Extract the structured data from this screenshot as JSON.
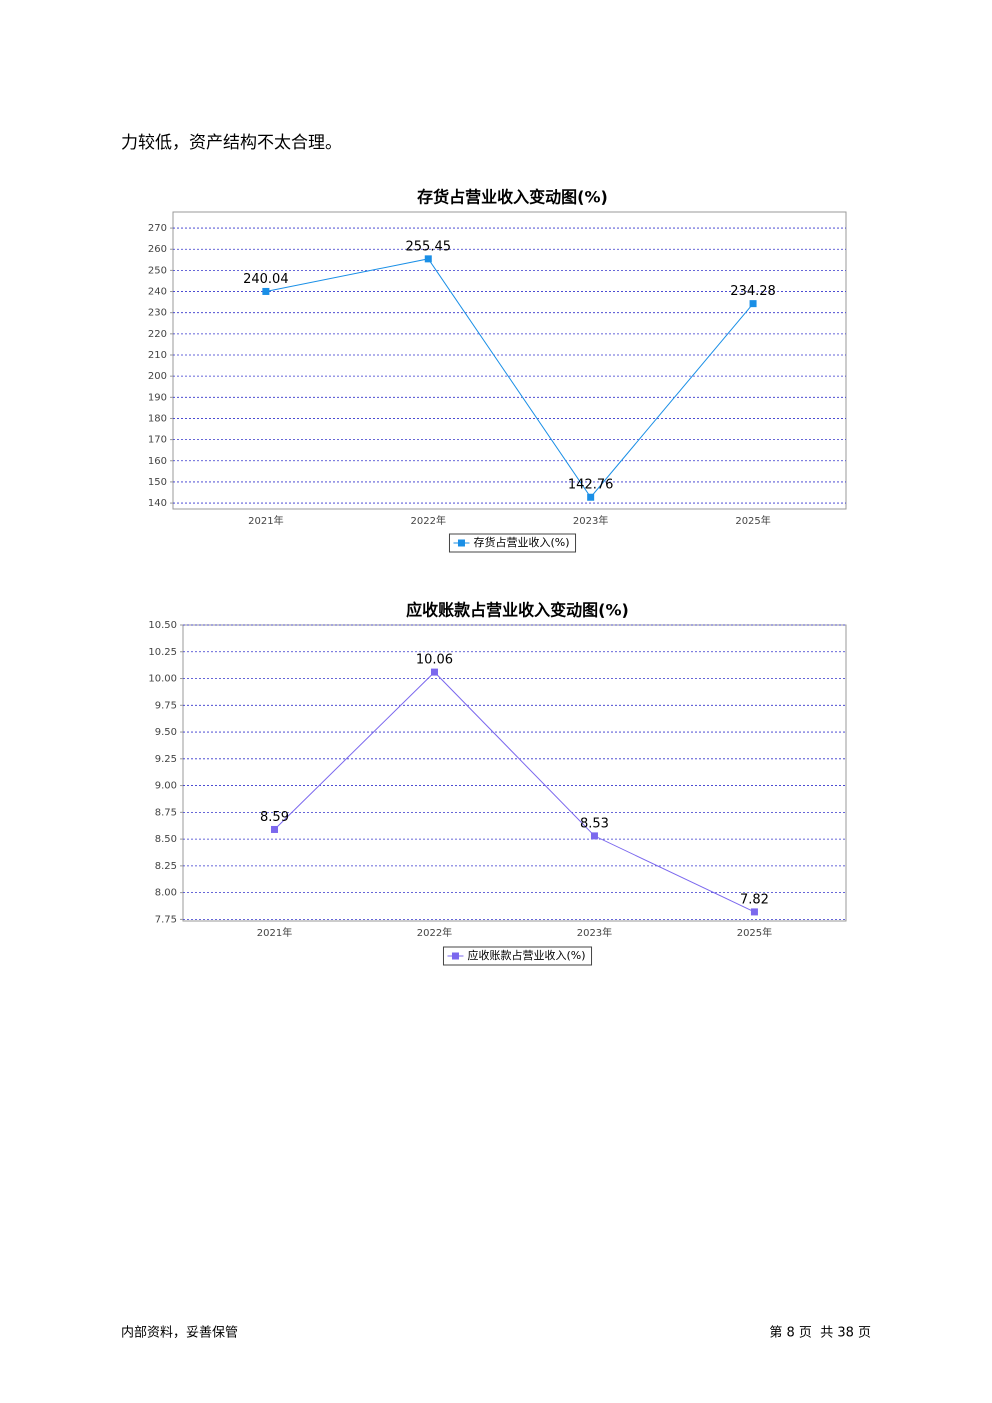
{
  "body_text": "力较低，资产结构不太合理。",
  "chart_data": [
    {
      "type": "line",
      "title": "存货占营业收入变动图(%)",
      "categories": [
        "2021年",
        "2022年",
        "2023年",
        "2025年"
      ],
      "series": [
        {
          "name": "存货占营业收入(%)",
          "color": "#1a8fe6",
          "values": [
            240.04,
            255.45,
            142.76,
            234.28
          ]
        }
      ],
      "ylim": [
        137.2,
        277.6
      ],
      "yticks": [
        140,
        150,
        160,
        170,
        180,
        190,
        200,
        210,
        220,
        230,
        240,
        250,
        260,
        270
      ],
      "grid": true
    },
    {
      "type": "line",
      "title": "应收账款占营业收入变动图(%)",
      "categories": [
        "2021年",
        "2022年",
        "2023年",
        "2025年"
      ],
      "series": [
        {
          "name": "应收账款占营业收入(%)",
          "color": "#7b68ee",
          "values": [
            8.59,
            10.06,
            8.53,
            7.82
          ]
        }
      ],
      "ylim": [
        7.735,
        10.5
      ],
      "yticks": [
        7.75,
        {
          "value": 8,
          "label": "8.00"
        },
        8.25,
        {
          "value": 8.5,
          "label": "8.50"
        },
        8.75,
        {
          "value": 9,
          "label": "9.00"
        },
        9.25,
        {
          "value": 9.5,
          "label": "9.50"
        },
        9.75,
        {
          "value": 10,
          "label": "10.00"
        },
        10.25,
        {
          "value": 10.5,
          "label": "10.50"
        }
      ],
      "grid": true
    }
  ],
  "footer": {
    "left": "内部资料，妥善保管",
    "right": "第 8 页  共 38 页"
  }
}
